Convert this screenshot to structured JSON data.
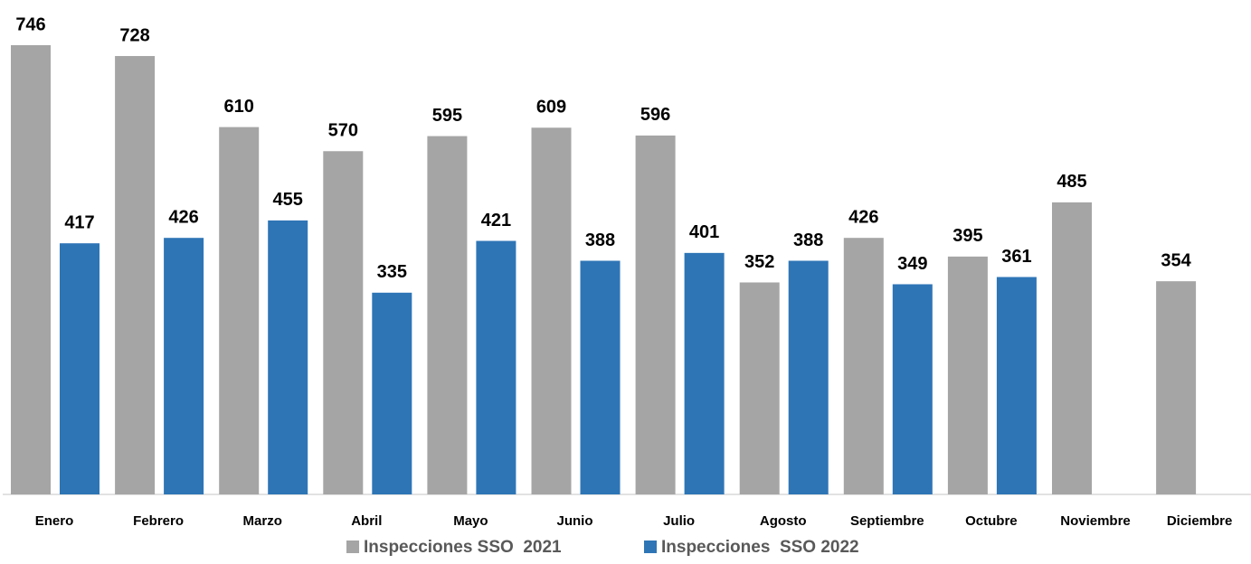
{
  "chart_data": {
    "type": "bar",
    "categories": [
      "Enero",
      "Febrero",
      "Marzo",
      "Abril",
      "Mayo",
      "Junio",
      "Julio",
      "Agosto",
      "Septiembre",
      "Octubre",
      "Noviembre",
      "Diciembre"
    ],
    "series": [
      {
        "name": "Inspecciones SSO  2021",
        "color": "#a5a5a5",
        "values": [
          746,
          728,
          610,
          570,
          595,
          609,
          596,
          352,
          426,
          395,
          485,
          354
        ]
      },
      {
        "name": "Inspecciones  SSO 2022",
        "color": "#2e75b6",
        "values": [
          417,
          426,
          455,
          335,
          421,
          388,
          401,
          388,
          349,
          361,
          null,
          null
        ]
      }
    ],
    "legend": "bottom"
  }
}
